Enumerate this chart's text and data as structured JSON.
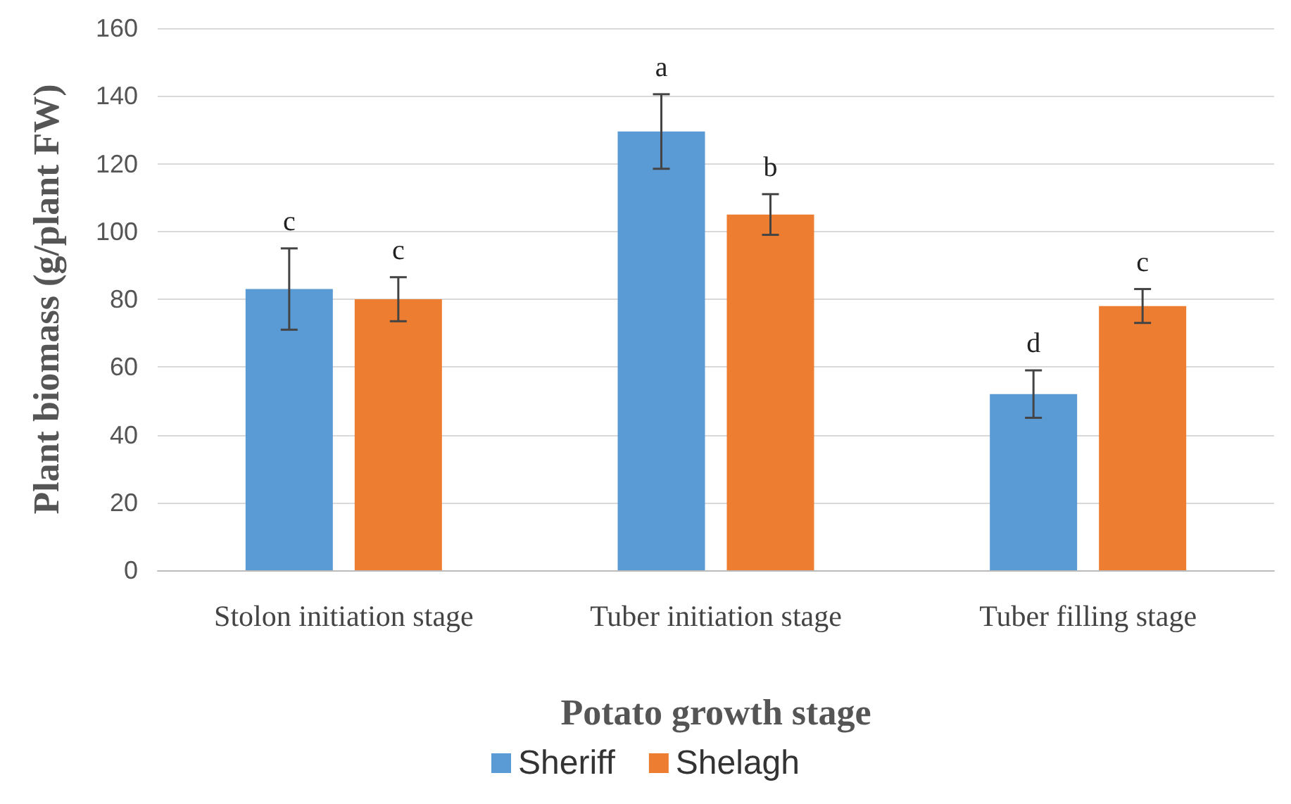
{
  "chart_data": {
    "type": "bar",
    "xlabel": "Potato growth stage",
    "ylabel": "Plant biomass (g/plant FW)",
    "categories": [
      "Stolon initiation stage",
      "Tuber initiation stage",
      "Tuber filling stage"
    ],
    "series": [
      {
        "name": "Sheriff",
        "color": "#5b9bd5",
        "values": [
          83,
          129.5,
          52
        ],
        "errors": [
          12,
          11,
          7
        ],
        "value_labels": [
          "c",
          "a",
          "d"
        ]
      },
      {
        "name": "Shelagh",
        "color": "#ed7d31",
        "values": [
          80,
          105,
          78
        ],
        "errors": [
          6.5,
          6,
          5
        ],
        "value_labels": [
          "c",
          "b",
          "c"
        ]
      }
    ],
    "ylim": [
      0,
      160
    ],
    "yticks": [
      0,
      20,
      40,
      60,
      80,
      100,
      120,
      140,
      160
    ],
    "grid": "y",
    "legend": "bottom"
  }
}
